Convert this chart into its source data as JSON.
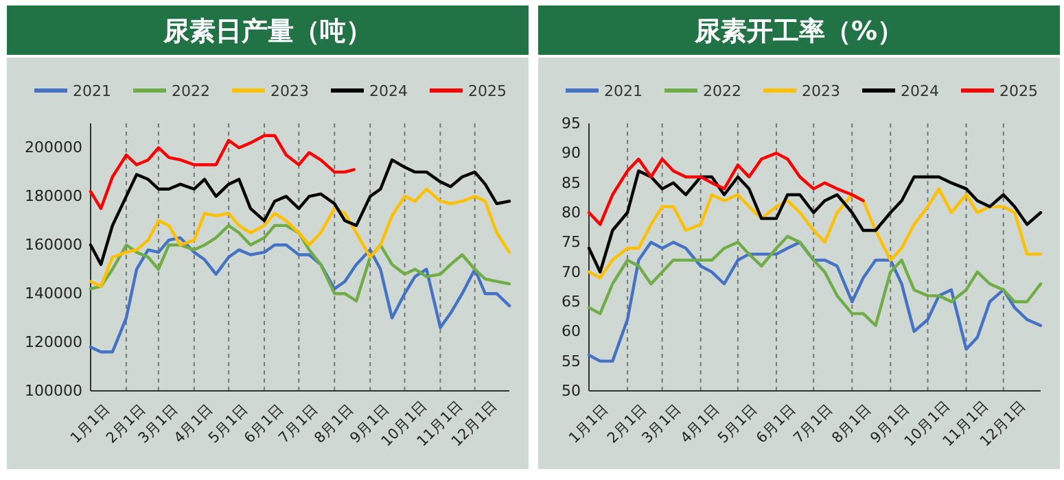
{
  "chart_data": [
    {
      "type": "line",
      "title": "尿素日产量（吨）",
      "legend": "top",
      "grid": "x",
      "x": [
        "--01-01",
        "--01-10",
        "--01-20",
        "--02-01",
        "--02-10",
        "--02-20",
        "--03-01",
        "--03-10",
        "--03-20",
        "--04-01",
        "--04-10",
        "--04-20",
        "--05-01",
        "--05-10",
        "--05-20",
        "--06-01",
        "--06-10",
        "--06-20",
        "--07-01",
        "--07-10",
        "--07-20",
        "--08-01",
        "--08-10",
        "--08-20",
        "--09-01",
        "--09-10",
        "--09-20",
        "--10-01",
        "--10-10",
        "--10-20",
        "--11-01",
        "--11-10",
        "--11-20",
        "--12-01",
        "--12-10",
        "--12-20",
        "--12-31"
      ],
      "xlim": [
        "--01-01",
        "--12-31"
      ],
      "xticks": [
        {
          "value": "--01-01",
          "label": "1月1日"
        },
        {
          "value": "--02-01",
          "label": "2月1日"
        },
        {
          "value": "--03-01",
          "label": "3月1日"
        },
        {
          "value": "--04-01",
          "label": "4月1日"
        },
        {
          "value": "--05-01",
          "label": "5月1日"
        },
        {
          "value": "--06-01",
          "label": "6月1日"
        },
        {
          "value": "--07-01",
          "label": "7月1日"
        },
        {
          "value": "--08-01",
          "label": "8月1日"
        },
        {
          "value": "--09-01",
          "label": "9月1日"
        },
        {
          "value": "--10-01",
          "label": "10月1日"
        },
        {
          "value": "--11-01",
          "label": "11月1日"
        },
        {
          "value": "--12-01",
          "label": "12月1日"
        }
      ],
      "ylim": [
        100000,
        210000
      ],
      "yticks": [
        100000,
        120000,
        140000,
        160000,
        180000,
        200000
      ],
      "series": [
        {
          "name": "2021",
          "color": "#4472c4",
          "values": [
            118000,
            116000,
            116000,
            130000,
            150000,
            158000,
            157000,
            162000,
            163000,
            157000,
            154000,
            148000,
            155000,
            158000,
            156000,
            157000,
            160000,
            160000,
            156000,
            156000,
            152000,
            142000,
            145000,
            152000,
            158000,
            150000,
            130000,
            140000,
            147000,
            150000,
            126000,
            132000,
            140000,
            150000,
            140000,
            140000,
            135000
          ]
        },
        {
          "name": "2022",
          "color": "#70ad47",
          "values": [
            142000,
            143000,
            150000,
            160000,
            157000,
            155000,
            150000,
            160000,
            160000,
            158000,
            160000,
            163000,
            168000,
            165000,
            160000,
            163000,
            168000,
            168000,
            165000,
            158000,
            152000,
            140000,
            140000,
            137000,
            155000,
            160000,
            152000,
            148000,
            150000,
            147000,
            148000,
            152000,
            156000,
            150000,
            146000,
            145000,
            144000
          ]
        },
        {
          "name": "2023",
          "color": "#ffc000",
          "values": [
            145000,
            143000,
            155000,
            157000,
            158000,
            162000,
            170000,
            168000,
            160000,
            162000,
            173000,
            172000,
            173000,
            168000,
            165000,
            168000,
            173000,
            170000,
            165000,
            160000,
            165000,
            175000,
            173000,
            165000,
            155000,
            160000,
            172000,
            180000,
            178000,
            183000,
            178000,
            177000,
            178000,
            180000,
            178000,
            165000,
            157000
          ]
        },
        {
          "name": "2024",
          "color": "#000000",
          "values": [
            160000,
            152000,
            168000,
            180000,
            189000,
            187000,
            183000,
            183000,
            185000,
            183000,
            187000,
            180000,
            185000,
            187000,
            175000,
            170000,
            178000,
            180000,
            175000,
            180000,
            181000,
            177000,
            170000,
            168000,
            180000,
            183000,
            195000,
            192000,
            190000,
            190000,
            186000,
            184000,
            188000,
            190000,
            185000,
            177000,
            178000
          ]
        },
        {
          "name": "2025",
          "color": "#ff0000",
          "x": [
            "--01-01",
            "--01-10",
            "--01-20",
            "--02-01",
            "--02-10",
            "--02-20",
            "--03-01",
            "--03-10",
            "--03-20",
            "--04-01",
            "--04-10",
            "--04-20",
            "--05-01",
            "--05-10",
            "--05-20",
            "--06-01",
            "--06-10",
            "--06-20",
            "--07-01",
            "--07-10",
            "--07-20",
            "--08-01",
            "--08-10",
            "--08-18"
          ],
          "values": [
            182000,
            175000,
            188000,
            197000,
            193000,
            195000,
            200000,
            196000,
            195000,
            193000,
            193000,
            193000,
            203000,
            200000,
            202000,
            205000,
            205000,
            197000,
            193000,
            198000,
            195000,
            190000,
            190000,
            191000
          ]
        }
      ]
    },
    {
      "type": "line",
      "title": "尿素开工率（%）",
      "legend": "top",
      "grid": "x",
      "x": [
        "--01-01",
        "--01-10",
        "--01-20",
        "--02-01",
        "--02-10",
        "--02-20",
        "--03-01",
        "--03-10",
        "--03-20",
        "--04-01",
        "--04-10",
        "--04-20",
        "--05-01",
        "--05-10",
        "--05-20",
        "--06-01",
        "--06-10",
        "--06-20",
        "--07-01",
        "--07-10",
        "--07-20",
        "--08-01",
        "--08-10",
        "--08-20",
        "--09-01",
        "--09-10",
        "--09-20",
        "--10-01",
        "--10-10",
        "--10-20",
        "--11-01",
        "--11-10",
        "--11-20",
        "--12-01",
        "--12-10",
        "--12-20",
        "--12-31"
      ],
      "xlim": [
        "--01-01",
        "--12-31"
      ],
      "xticks": [
        {
          "value": "--01-01",
          "label": "1月1日"
        },
        {
          "value": "--02-01",
          "label": "2月1日"
        },
        {
          "value": "--03-01",
          "label": "3月1日"
        },
        {
          "value": "--04-01",
          "label": "4月1日"
        },
        {
          "value": "--05-01",
          "label": "5月1日"
        },
        {
          "value": "--06-01",
          "label": "6月1日"
        },
        {
          "value": "--07-01",
          "label": "7月1日"
        },
        {
          "value": "--08-01",
          "label": "8月1日"
        },
        {
          "value": "--09-01",
          "label": "9月1日"
        },
        {
          "value": "--10-01",
          "label": "10月1日"
        },
        {
          "value": "--11-01",
          "label": "11月1日"
        },
        {
          "value": "--12-01",
          "label": "12月1日"
        }
      ],
      "ylim": [
        50,
        95
      ],
      "yticks": [
        50,
        55,
        60,
        65,
        70,
        75,
        80,
        85,
        90,
        95
      ],
      "series": [
        {
          "name": "2021",
          "color": "#4472c4",
          "values": [
            56,
            55,
            55,
            62,
            72,
            75,
            74,
            75,
            74,
            71,
            70,
            68,
            72,
            73,
            73,
            73,
            74,
            75,
            72,
            72,
            71,
            65,
            69,
            72,
            72,
            68,
            60,
            62,
            66,
            67,
            57,
            59,
            65,
            67,
            64,
            62,
            61
          ]
        },
        {
          "name": "2022",
          "color": "#70ad47",
          "values": [
            64,
            63,
            68,
            72,
            71,
            68,
            70,
            72,
            72,
            72,
            72,
            74,
            75,
            73,
            71,
            74,
            76,
            75,
            72,
            70,
            66,
            63,
            63,
            61,
            70,
            72,
            67,
            66,
            66,
            65,
            67,
            70,
            68,
            67,
            65,
            65,
            68
          ]
        },
        {
          "name": "2023",
          "color": "#ffc000",
          "values": [
            70,
            69,
            72,
            74,
            74,
            78,
            81,
            81,
            77,
            78,
            83,
            82,
            83,
            81,
            79,
            81,
            82,
            80,
            77,
            75,
            80,
            83,
            82,
            77,
            72,
            74,
            78,
            81,
            84,
            80,
            83,
            80,
            81,
            81,
            80,
            73,
            73
          ]
        },
        {
          "name": "2024",
          "color": "#000000",
          "values": [
            74,
            70,
            77,
            80,
            87,
            86,
            84,
            85,
            83,
            86,
            86,
            83,
            86,
            84,
            79,
            79,
            83,
            83,
            80,
            82,
            83,
            80,
            77,
            77,
            80,
            82,
            86,
            86,
            86,
            85,
            84,
            82,
            81,
            83,
            81,
            78,
            80
          ]
        },
        {
          "name": "2025",
          "color": "#ff0000",
          "x": [
            "--01-01",
            "--01-10",
            "--01-20",
            "--02-01",
            "--02-10",
            "--02-20",
            "--03-01",
            "--03-10",
            "--03-20",
            "--04-01",
            "--04-10",
            "--04-20",
            "--05-01",
            "--05-10",
            "--05-20",
            "--06-01",
            "--06-10",
            "--06-20",
            "--07-01",
            "--07-10",
            "--07-20",
            "--08-01",
            "--08-10"
          ],
          "values": [
            80,
            78,
            83,
            87,
            89,
            86,
            89,
            87,
            86,
            86,
            85,
            84,
            88,
            86,
            89,
            90,
            89,
            86,
            84,
            85,
            84,
            83,
            82
          ]
        }
      ]
    }
  ]
}
